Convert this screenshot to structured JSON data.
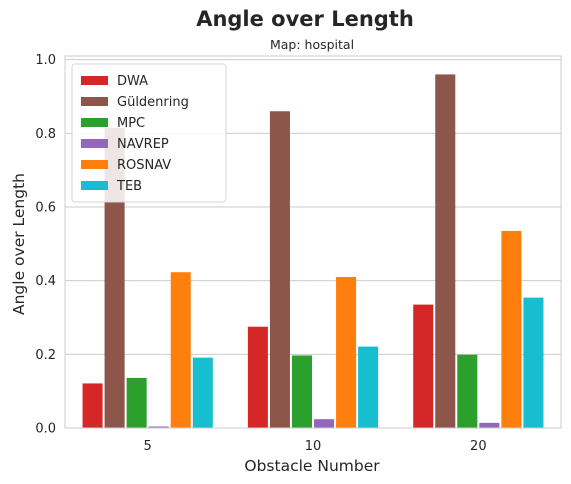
{
  "chart_data": {
    "type": "bar",
    "title": "Angle over Length",
    "subtitle": "Map: hospital",
    "xlabel": "Obstacle Number",
    "ylabel": "Angle over Length",
    "categories": [
      "5",
      "10",
      "20"
    ],
    "ylim": [
      0,
      1.01
    ],
    "yticks": [
      0.0,
      0.2,
      0.4,
      0.6,
      0.8,
      1.0
    ],
    "yticklabels": [
      "0.0",
      "0.2",
      "0.4",
      "0.6",
      "0.8",
      "1.0"
    ],
    "grid": true,
    "legend_position": "top-left",
    "series": [
      {
        "name": "DWA",
        "color": "#d62728",
        "values": [
          0.121,
          0.275,
          0.335
        ]
      },
      {
        "name": "Güldenring",
        "color": "#8c564b",
        "values": [
          0.815,
          0.86,
          0.96
        ]
      },
      {
        "name": "MPC",
        "color": "#2ca02c",
        "values": [
          0.136,
          0.197,
          0.199
        ]
      },
      {
        "name": "NAVREP",
        "color": "#9467bd",
        "values": [
          0.004,
          0.024,
          0.014
        ]
      },
      {
        "name": "ROSNAV",
        "color": "#ff7f0e",
        "values": [
          0.423,
          0.41,
          0.535
        ]
      },
      {
        "name": "TEB",
        "color": "#17becf",
        "values": [
          0.191,
          0.221,
          0.354
        ]
      }
    ]
  }
}
